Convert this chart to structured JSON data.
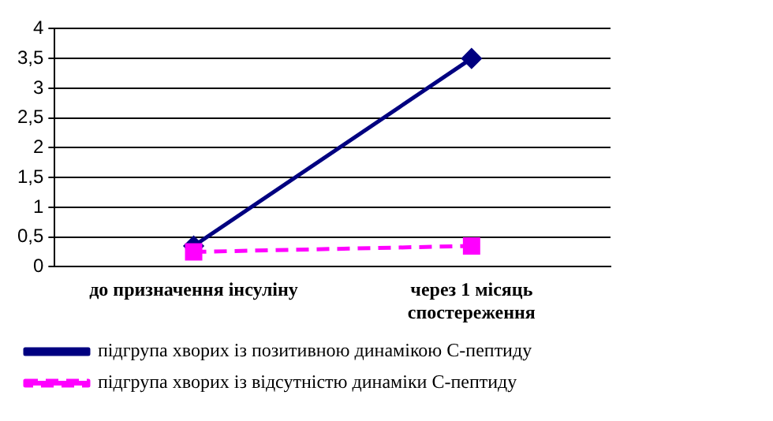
{
  "chart_data": {
    "type": "line",
    "categories": [
      "до призначення інсуліну",
      "через 1 місяць спостереження"
    ],
    "series": [
      {
        "name": "підгрупа хворих із позитивною динамікою С-пептиду",
        "color": "#000080",
        "values": [
          0.35,
          3.5
        ],
        "marker": "diamond",
        "line_style": "solid"
      },
      {
        "name": "підгрупа хворих із відсутністю динаміки С-пептиду",
        "color": "#ff00ff",
        "values": [
          0.25,
          0.35
        ],
        "marker": "square",
        "line_style": "dashed"
      }
    ],
    "ylim": [
      0,
      4
    ],
    "yticks": [
      0,
      {
        "value": 0.5,
        "label": "0,5"
      },
      1,
      {
        "value": 1.5,
        "label": "1,5"
      },
      2,
      {
        "value": 2.5,
        "label": "2,5"
      },
      3,
      {
        "value": 3.5,
        "label": "3,5"
      },
      4
    ],
    "grid": "y",
    "legend": "bottom"
  }
}
